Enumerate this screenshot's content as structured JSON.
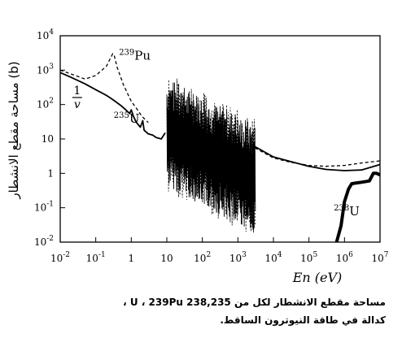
{
  "chart_data": {
    "type": "line",
    "xlabel": "En (eV)",
    "ylabel": "مساحة مقطع الانشطار (b)",
    "x_scale": "log",
    "y_scale": "log",
    "xlim": [
      0.01,
      10000000
    ],
    "ylim": [
      0.01,
      10000
    ],
    "x_ticks": [
      {
        "value": 0.01,
        "base": "10",
        "exp": "-2"
      },
      {
        "value": 0.1,
        "base": "10",
        "exp": "-1"
      },
      {
        "value": 1,
        "base": "1",
        "exp": ""
      },
      {
        "value": 10,
        "base": "10",
        "exp": ""
      },
      {
        "value": 100,
        "base": "10",
        "exp": "2"
      },
      {
        "value": 1000,
        "base": "10",
        "exp": "3"
      },
      {
        "value": 10000,
        "base": "10",
        "exp": "4"
      },
      {
        "value": 100000,
        "base": "10",
        "exp": "5"
      },
      {
        "value": 1000000,
        "base": "10",
        "exp": "6"
      },
      {
        "value": 10000000,
        "base": "10",
        "exp": "7"
      }
    ],
    "y_ticks": [
      {
        "value": 0.01,
        "base": "10",
        "exp": "-2"
      },
      {
        "value": 0.1,
        "base": "10",
        "exp": "-1"
      },
      {
        "value": 1,
        "base": "1",
        "exp": ""
      },
      {
        "value": 10,
        "base": "10",
        "exp": ""
      },
      {
        "value": 100,
        "base": "10",
        "exp": "2"
      },
      {
        "value": 1000,
        "base": "10",
        "exp": "3"
      },
      {
        "value": 10000,
        "base": "10",
        "exp": "4"
      }
    ],
    "series": [
      {
        "name": "235U",
        "style": "solid",
        "points": [
          [
            0.01,
            850
          ],
          [
            0.02,
            620
          ],
          [
            0.05,
            400
          ],
          [
            0.1,
            270
          ],
          [
            0.2,
            185
          ],
          [
            0.3,
            140
          ],
          [
            0.5,
            95
          ],
          [
            0.7,
            70
          ],
          [
            0.9,
            55
          ],
          [
            1.0,
            70
          ],
          [
            1.15,
            45
          ],
          [
            1.4,
            30
          ],
          [
            1.8,
            22
          ],
          [
            2.1,
            34
          ],
          [
            2.3,
            18
          ],
          [
            3.0,
            14
          ],
          [
            4.0,
            13
          ],
          [
            5.0,
            11
          ],
          [
            7.0,
            10
          ],
          [
            9.0,
            15
          ]
        ],
        "resonance_region": [
          10,
          3000
        ],
        "points_high": [
          [
            3000,
            6.0
          ],
          [
            10000,
            3.0
          ],
          [
            30000,
            2.2
          ],
          [
            100000,
            1.6
          ],
          [
            300000,
            1.3
          ],
          [
            1000000,
            1.2
          ],
          [
            3000000,
            1.25
          ],
          [
            10000000,
            1.8
          ]
        ]
      },
      {
        "name": "239Pu",
        "style": "dashed",
        "points": [
          [
            0.01,
            1000
          ],
          [
            0.05,
            550
          ],
          [
            0.1,
            700
          ],
          [
            0.2,
            1300
          ],
          [
            0.3,
            3000
          ],
          [
            0.33,
            2700
          ],
          [
            0.4,
            1200
          ],
          [
            0.6,
            380
          ],
          [
            0.8,
            200
          ],
          [
            1.0,
            125
          ],
          [
            1.5,
            70
          ],
          [
            2.0,
            45
          ],
          [
            3.0,
            30
          ]
        ],
        "points_high": [
          [
            3000,
            5.5
          ],
          [
            10000,
            2.8
          ],
          [
            30000,
            2.1
          ],
          [
            100000,
            1.7
          ],
          [
            300000,
            1.6
          ],
          [
            1000000,
            1.7
          ],
          [
            3000000,
            2.0
          ],
          [
            10000000,
            2.3
          ]
        ]
      },
      {
        "name": "238U",
        "style": "bold",
        "points": [
          [
            600000,
            0.01
          ],
          [
            800000,
            0.03
          ],
          [
            1000000,
            0.15
          ],
          [
            1300000,
            0.35
          ],
          [
            1600000,
            0.5
          ],
          [
            2000000,
            0.52
          ],
          [
            3000000,
            0.55
          ],
          [
            5000000,
            0.6
          ],
          [
            6500000,
            1.0
          ],
          [
            8000000,
            1.0
          ],
          [
            10000000,
            0.9
          ]
        ]
      }
    ],
    "annotations": [
      {
        "base": "",
        "sup": "239",
        "text": "Pu",
        "x": 0.45,
        "y": 2000
      },
      {
        "base": "",
        "sup": "235",
        "text": "U",
        "x": 0.32,
        "y": 30
      },
      {
        "base": "",
        "sup": "238",
        "text": "U",
        "x": 500000,
        "y": 0.06
      },
      {
        "base": "1/v",
        "sup": "",
        "text": "",
        "x": 0.03,
        "y": 160
      }
    ]
  },
  "caption": {
    "line1": "مساحة مقطع الانشطار لكل من 238,235 U ، 239Pu ،",
    "line2": "كدالة في طاقة النيوترون الساقط."
  }
}
